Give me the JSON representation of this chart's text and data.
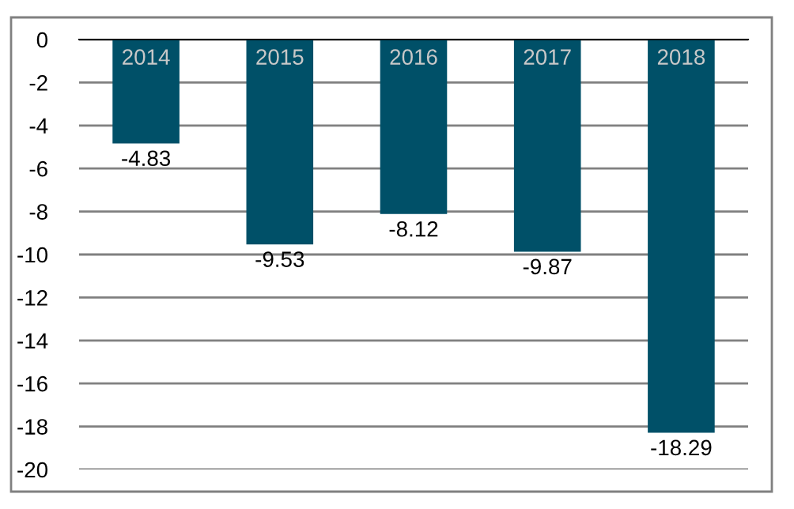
{
  "chart_data": {
    "type": "bar",
    "categories": [
      "2014",
      "2015",
      "2016",
      "2017",
      "2018"
    ],
    "values": [
      -4.83,
      -9.53,
      -8.12,
      -9.87,
      -18.29
    ],
    "color": "#005068",
    "ylim": [
      -20,
      0
    ],
    "yticks": [
      0,
      -2,
      -4,
      -6,
      -8,
      -10,
      -12,
      -14,
      -16,
      -18,
      -20
    ],
    "grid": "y",
    "data_labels": true
  }
}
